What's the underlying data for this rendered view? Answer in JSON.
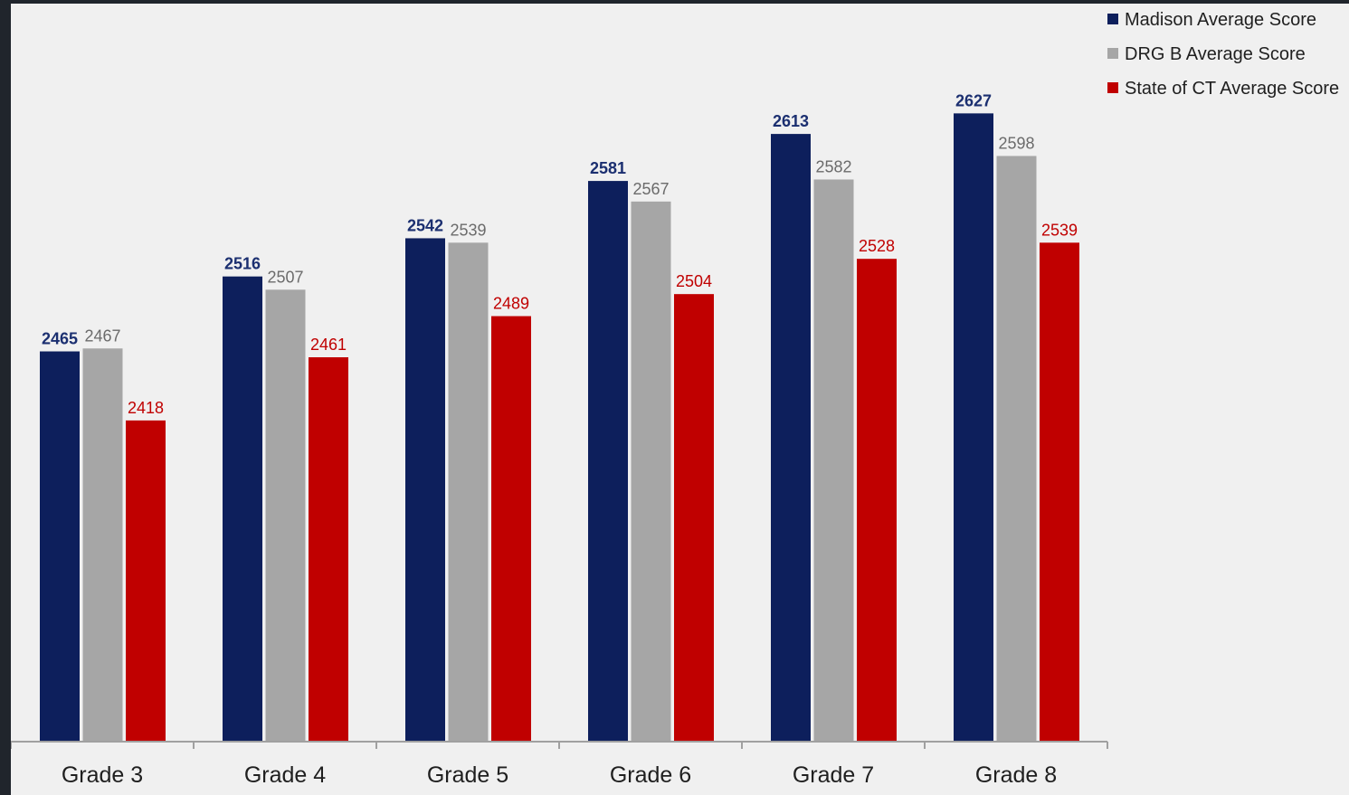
{
  "chart_data": {
    "type": "bar",
    "title": "",
    "xlabel": "",
    "ylabel": "",
    "ylim": [
      2200,
      2650
    ],
    "grid": false,
    "legend_placement": "top-right",
    "categories": [
      "Grade 3",
      "Grade 4",
      "Grade 5",
      "Grade 6",
      "Grade 7",
      "Grade 8"
    ],
    "series": [
      {
        "name": "Madison Average Score",
        "color": "#0d1f5c",
        "label_color": "#1b2f70",
        "label_bold": true,
        "values": [
          2465,
          2516,
          2542,
          2581,
          2613,
          2627
        ]
      },
      {
        "name": "DRG B Average Score",
        "color": "#a6a6a6",
        "label_color": "#6b6b6b",
        "label_bold": false,
        "values": [
          2467,
          2507,
          2539,
          2567,
          2582,
          2598
        ]
      },
      {
        "name": "State of CT Average Score",
        "color": "#c00000",
        "label_color": "#c00000",
        "label_bold": false,
        "values": [
          2418,
          2461,
          2489,
          2504,
          2528,
          2539
        ]
      }
    ]
  }
}
